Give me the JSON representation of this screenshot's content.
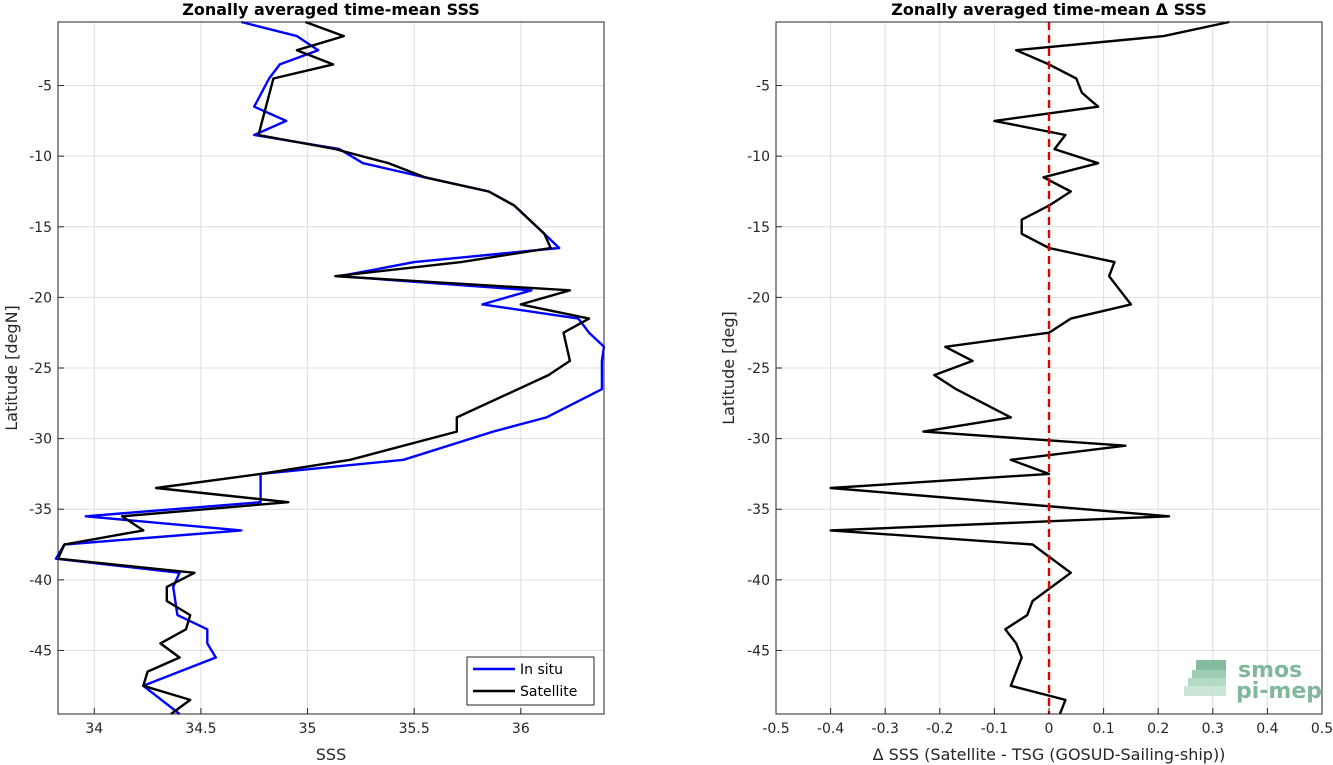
{
  "chart_data": [
    {
      "type": "line",
      "title": "Zonally averaged time-mean SSS",
      "xlabel": "SSS",
      "ylabel": "Latitude [degN]",
      "xlim": [
        33.83,
        36.39
      ],
      "ylim": [
        -49.5,
        -0.5
      ],
      "xticks": [
        34,
        34.5,
        35,
        35.5,
        36
      ],
      "xtick_labels": [
        "34",
        "34.5",
        "35",
        "35.5",
        "36"
      ],
      "yticks": [
        -5,
        -10,
        -15,
        -20,
        -25,
        -30,
        -35,
        -40,
        -45
      ],
      "ytick_labels": [
        "-5",
        "-10",
        "-15",
        "-20",
        "-25",
        "-30",
        "-35",
        "-40",
        "-45"
      ],
      "grid": true,
      "legend": "bottom-right",
      "series": [
        {
          "name": "In situ",
          "color": "#0000ff",
          "x": [
            34.69,
            34.95,
            35.05,
            34.87,
            34.82,
            34.75,
            34.9,
            34.75,
            35.15,
            35.26,
            35.55,
            35.85,
            35.97,
            36.11,
            36.18,
            35.5,
            35.15,
            36.05,
            35.82,
            36.27,
            36.32,
            36.39,
            36.38,
            36.38,
            36.25,
            36.12,
            35.87,
            35.45,
            34.78,
            34.78,
            33.96,
            34.69,
            33.86,
            33.82,
            34.4,
            34.37,
            34.39,
            34.53,
            34.53,
            34.57,
            34.23,
            34.4
          ],
          "y": [
            -0.5,
            -1.5,
            -2.5,
            -3.5,
            -4.5,
            -6.5,
            -7.5,
            -8.5,
            -9.5,
            -10.5,
            -11.5,
            -12.5,
            -13.5,
            -15.5,
            -16.5,
            -17.5,
            -18.5,
            -19.5,
            -20.5,
            -21.5,
            -22.5,
            -23.5,
            -24.5,
            -26.5,
            -27.5,
            -28.5,
            -29.5,
            -31.5,
            -32.5,
            -34.5,
            -35.5,
            -36.5,
            -37.5,
            -38.5,
            -39.5,
            -40.5,
            -42.5,
            -43.5,
            -44.5,
            -45.5,
            -47.5,
            -49.5
          ]
        },
        {
          "name": "Satellite",
          "color": "#000000",
          "x": [
            34.99,
            35.17,
            34.95,
            35.12,
            34.84,
            34.77,
            35.13,
            35.38,
            35.55,
            35.85,
            35.97,
            36.11,
            36.14,
            35.72,
            35.13,
            36.23,
            36.0,
            36.32,
            36.2,
            36.23,
            36.13,
            35.7,
            35.7,
            35.2,
            34.78,
            34.29,
            34.91,
            34.13,
            34.23,
            33.86,
            33.83,
            34.47,
            34.34,
            34.34,
            34.45,
            34.43,
            34.31,
            34.4,
            34.25,
            34.23,
            34.45,
            34.36
          ],
          "y": [
            -0.5,
            -1.5,
            -2.5,
            -3.5,
            -4.5,
            -8.5,
            -9.5,
            -10.5,
            -11.5,
            -12.5,
            -13.5,
            -15.5,
            -16.5,
            -17.5,
            -18.5,
            -19.5,
            -20.5,
            -21.5,
            -22.5,
            -24.5,
            -25.5,
            -28.5,
            -29.5,
            -31.5,
            -32.5,
            -33.5,
            -34.5,
            -35.5,
            -36.5,
            -37.5,
            -38.5,
            -39.5,
            -40.5,
            -41.5,
            -42.5,
            -43.5,
            -44.5,
            -45.5,
            -46.5,
            -47.5,
            -48.5,
            -49.5
          ]
        }
      ]
    },
    {
      "type": "line",
      "title": "Zonally averaged time-mean Δ SSS",
      "xlabel": "Δ SSS (Satellite - TSG (GOSUD-Sailing-ship))",
      "ylabel": "Latitude [deg]",
      "xlim": [
        -0.5,
        0.5
      ],
      "ylim": [
        -49.5,
        -0.5
      ],
      "xticks": [
        -0.5,
        -0.4,
        -0.3,
        -0.2,
        -0.1,
        0,
        0.1,
        0.2,
        0.3,
        0.4,
        0.5
      ],
      "xtick_labels": [
        "-0.5",
        "-0.4",
        "-0.3",
        "-0.2",
        "-0.1",
        "0",
        "0.1",
        "0.2",
        "0.3",
        "0.4",
        "0.5"
      ],
      "yticks": [
        -5,
        -10,
        -15,
        -20,
        -25,
        -30,
        -35,
        -40,
        -45
      ],
      "ytick_labels": [
        "-5",
        "-10",
        "-15",
        "-20",
        "-25",
        "-30",
        "-35",
        "-40",
        "-45"
      ],
      "grid": true,
      "reference_line": {
        "x": 0,
        "color": "#e00000",
        "style": "dashed"
      },
      "series": [
        {
          "color": "#000000",
          "x": [
            0.33,
            0.21,
            -0.06,
            0.0,
            0.05,
            0.06,
            0.09,
            -0.1,
            0.03,
            0.01,
            0.09,
            -0.01,
            0.04,
            0.0,
            -0.05,
            -0.05,
            0.0,
            0.12,
            0.11,
            0.15,
            0.04,
            0.0,
            -0.19,
            -0.14,
            -0.21,
            -0.17,
            -0.07,
            -0.23,
            0.14,
            -0.07,
            0.0,
            -0.4,
            0.22,
            -0.4,
            -0.03,
            0.04,
            -0.03,
            -0.04,
            -0.08,
            -0.06,
            -0.05,
            -0.07,
            0.03,
            0.02
          ],
          "y": [
            -0.5,
            -1.5,
            -2.5,
            -3.5,
            -4.5,
            -5.5,
            -6.5,
            -7.5,
            -8.5,
            -9.5,
            -10.5,
            -11.5,
            -12.5,
            -13.5,
            -14.5,
            -15.5,
            -16.5,
            -17.5,
            -18.5,
            -20.5,
            -21.5,
            -22.5,
            -23.5,
            -24.5,
            -25.5,
            -26.5,
            -28.5,
            -29.5,
            -30.5,
            -31.5,
            -32.5,
            -33.5,
            -35.5,
            -36.5,
            -37.5,
            -39.5,
            -41.5,
            -42.5,
            -43.5,
            -44.5,
            -45.5,
            -47.5,
            -48.5,
            -49.5
          ]
        }
      ]
    }
  ],
  "legend": {
    "items": [
      {
        "label": "In situ",
        "color": "#0000ff"
      },
      {
        "label": "Satellite",
        "color": "#000000"
      }
    ]
  },
  "logo": {
    "line1": "smos",
    "line2": "pi-mep",
    "color": "#7fb99a"
  }
}
